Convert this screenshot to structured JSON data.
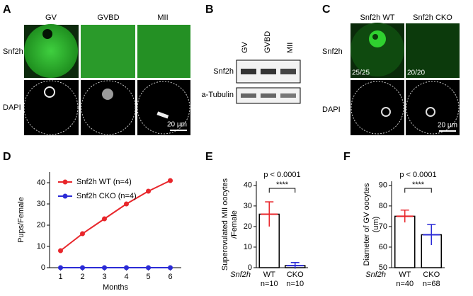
{
  "panel_a": {
    "label": "A",
    "columns": [
      "GV",
      "GVBD",
      "MII"
    ],
    "rows": [
      "Snf2h",
      "DAPI"
    ],
    "scale": "20 µm"
  },
  "panel_b": {
    "label": "B",
    "columns": [
      "GV",
      "GVBD",
      "MII"
    ],
    "rows": [
      "Snf2h",
      "a-Tubulin"
    ]
  },
  "panel_c": {
    "label": "C",
    "columns": [
      "Snf2h WT",
      "Snf2h CKO"
    ],
    "rows": [
      "Snf2h",
      "DAPI"
    ],
    "counts": [
      "25/25",
      "20/20"
    ],
    "scale": "20 µm"
  },
  "chart_data": [
    {
      "type": "line",
      "panel_label": "D",
      "ylabel": "Pups/Female",
      "xlabel": "Months",
      "x": [
        1,
        2,
        3,
        4,
        5,
        6
      ],
      "xlim": [
        0.5,
        6.5
      ],
      "xticks": [
        1,
        2,
        3,
        4,
        5,
        6
      ],
      "ylim": [
        0,
        45
      ],
      "yticks": [
        0,
        10,
        20,
        30,
        40
      ],
      "series": [
        {
          "name": "Snf2h WT (n=4)",
          "color": "#e8262b",
          "values": [
            8,
            16,
            23,
            30,
            36,
            41
          ]
        },
        {
          "name": "Snf2h CKO (n=4)",
          "color": "#2b2bd6",
          "values": [
            0,
            0,
            0,
            0,
            0,
            0
          ]
        }
      ]
    },
    {
      "type": "bar",
      "panel_label": "E",
      "ylabel": [
        "Superovulated MII oocytes",
        "/Female"
      ],
      "group_label": "Snf2h",
      "categories": [
        "WT",
        "CKO"
      ],
      "n_labels": [
        "n=10",
        "n=10"
      ],
      "values": [
        26,
        1
      ],
      "errors": [
        6,
        1.5
      ],
      "colors": [
        "#e8262b",
        "#2b2bd6"
      ],
      "ylim": [
        0,
        42
      ],
      "yticks": [
        0,
        10,
        20,
        30,
        40
      ],
      "p_label": "p < 0.0001",
      "sig": "****"
    },
    {
      "type": "bar",
      "panel_label": "F",
      "ylabel": [
        "Diameter of GV oocytes",
        "(um)"
      ],
      "group_label": "Snf2h",
      "categories": [
        "WT",
        "CKO"
      ],
      "n_labels": [
        "n=40",
        "n=68"
      ],
      "values": [
        75,
        66
      ],
      "errors": [
        3,
        5
      ],
      "colors": [
        "#e8262b",
        "#2b2bd6"
      ],
      "ylim": [
        50,
        92
      ],
      "yticks": [
        50,
        60,
        70,
        80,
        90
      ],
      "p_label": "p < 0.0001",
      "sig": "****"
    }
  ]
}
